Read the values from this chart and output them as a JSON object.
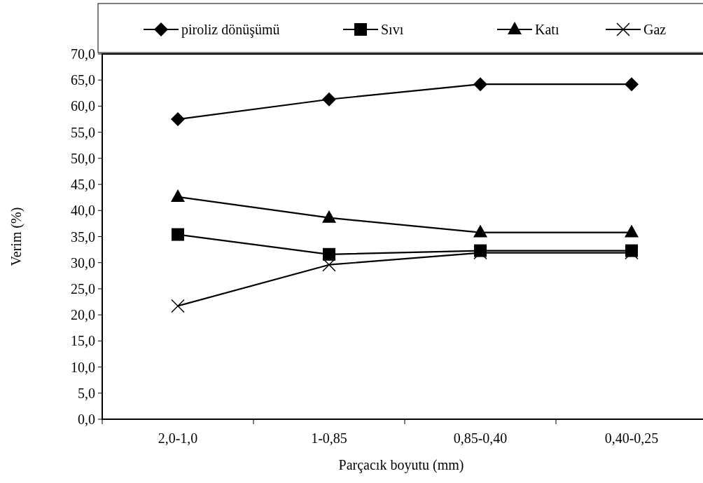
{
  "chart_data": {
    "type": "line",
    "xlabel": "Parçacık boyutu (mm)",
    "ylabel": "Verim (%)",
    "categories": [
      "2,0-1,0",
      "1-0,85",
      "0,85-0,40",
      "0,40-0,25"
    ],
    "series": [
      {
        "name": "piroliz dönüşümü",
        "color": "#000000",
        "marker": "diamond",
        "values": [
          57.5,
          61.3,
          64.2,
          64.2
        ]
      },
      {
        "name": "Sıvı",
        "color": "#000000",
        "marker": "square",
        "values": [
          35.4,
          31.6,
          32.3,
          32.3
        ]
      },
      {
        "name": "Katı",
        "color": "#000000",
        "marker": "triangle",
        "values": [
          42.6,
          38.6,
          35.8,
          35.8
        ]
      },
      {
        "name": "Gaz",
        "color": "#000000",
        "marker": "cross",
        "values": [
          21.7,
          29.6,
          31.9,
          31.9
        ]
      }
    ],
    "ylim": [
      0,
      70
    ],
    "yticks": [
      {
        "value": 0,
        "label": "0,0"
      },
      {
        "value": 5,
        "label": "5,0"
      },
      {
        "value": 10,
        "label": "10,0"
      },
      {
        "value": 15,
        "label": "15,0"
      },
      {
        "value": 20,
        "label": "20,0"
      },
      {
        "value": 25,
        "label": "25,0"
      },
      {
        "value": 30,
        "label": "30,0"
      },
      {
        "value": 35,
        "label": "35,0"
      },
      {
        "value": 40,
        "label": "40,0"
      },
      {
        "value": 45,
        "label": "45,0"
      },
      {
        "value": 50,
        "label": "50,0"
      },
      {
        "value": 55,
        "label": "55,0"
      },
      {
        "value": 60,
        "label": "60,0"
      },
      {
        "value": 65,
        "label": "65,0"
      },
      {
        "value": 70,
        "label": "70,0"
      }
    ],
    "legend": "top",
    "line_style": "solid",
    "grid": false
  }
}
